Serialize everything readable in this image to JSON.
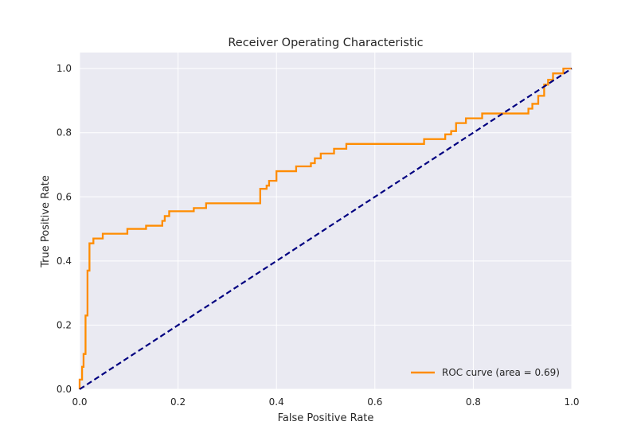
{
  "chart_data": {
    "type": "line",
    "title": "Receiver Operating Characteristic",
    "xlabel": "False Positive Rate",
    "ylabel": "True Positive Rate",
    "xlim": [
      0.0,
      1.0
    ],
    "ylim": [
      0.0,
      1.05
    ],
    "xticks": [
      "0.0",
      "0.2",
      "0.4",
      "0.6",
      "0.8",
      "1.0"
    ],
    "yticks": [
      "0.0",
      "0.2",
      "0.4",
      "0.6",
      "0.8",
      "1.0"
    ],
    "grid": true,
    "legend_position": "lower-right",
    "colors": {
      "background": "#eaeaf2",
      "grid": "#ffffff",
      "roc": "#ff8c00",
      "chance": "#000080"
    },
    "series": [
      {
        "name": "ROC curve (area = 0.69)",
        "style": "solid",
        "x": [
          0.0,
          0.0,
          0.005,
          0.005,
          0.008,
          0.008,
          0.012,
          0.012,
          0.016,
          0.016,
          0.02,
          0.02,
          0.028,
          0.028,
          0.047,
          0.047,
          0.097,
          0.097,
          0.135,
          0.135,
          0.168,
          0.168,
          0.173,
          0.173,
          0.182,
          0.182,
          0.232,
          0.232,
          0.257,
          0.257,
          0.367,
          0.367,
          0.38,
          0.38,
          0.385,
          0.385,
          0.4,
          0.4,
          0.44,
          0.44,
          0.47,
          0.47,
          0.478,
          0.478,
          0.49,
          0.49,
          0.517,
          0.517,
          0.542,
          0.542,
          0.7,
          0.7,
          0.743,
          0.743,
          0.755,
          0.755,
          0.765,
          0.765,
          0.785,
          0.785,
          0.818,
          0.818,
          0.912,
          0.912,
          0.92,
          0.92,
          0.932,
          0.932,
          0.944,
          0.944,
          0.952,
          0.952,
          0.962,
          0.962,
          0.983,
          0.983,
          1.0
        ],
        "y": [
          0.0,
          0.03,
          0.03,
          0.07,
          0.07,
          0.11,
          0.11,
          0.23,
          0.23,
          0.37,
          0.37,
          0.455,
          0.455,
          0.47,
          0.47,
          0.485,
          0.485,
          0.5,
          0.5,
          0.51,
          0.51,
          0.525,
          0.525,
          0.54,
          0.54,
          0.555,
          0.555,
          0.565,
          0.565,
          0.58,
          0.58,
          0.625,
          0.625,
          0.635,
          0.635,
          0.65,
          0.65,
          0.68,
          0.68,
          0.695,
          0.695,
          0.705,
          0.705,
          0.72,
          0.72,
          0.735,
          0.735,
          0.75,
          0.75,
          0.765,
          0.765,
          0.78,
          0.78,
          0.795,
          0.795,
          0.805,
          0.805,
          0.83,
          0.83,
          0.845,
          0.845,
          0.86,
          0.86,
          0.875,
          0.875,
          0.89,
          0.89,
          0.915,
          0.915,
          0.95,
          0.95,
          0.965,
          0.965,
          0.985,
          0.985,
          1.0,
          1.0
        ]
      },
      {
        "name": "",
        "style": "dashed",
        "x": [
          0.0,
          1.0
        ],
        "y": [
          0.0,
          1.0
        ]
      }
    ]
  }
}
